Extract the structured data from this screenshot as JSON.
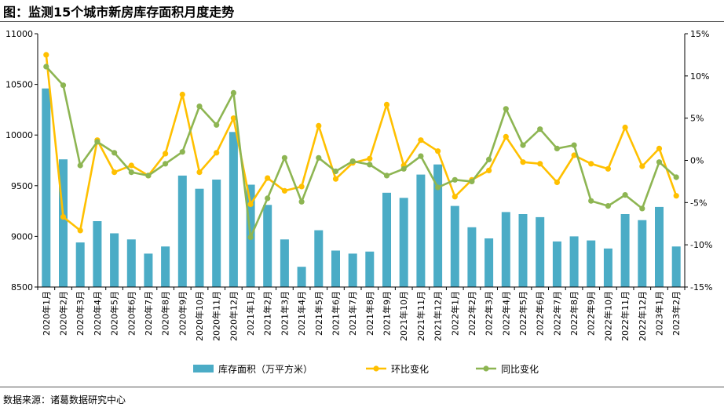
{
  "header": {
    "title": "图：监测15个城市新房库存面积月度走势"
  },
  "footer": {
    "source": "数据来源：诸葛数据研究中心"
  },
  "colors": {
    "bar": "#4bacc6",
    "mom": "#ffc000",
    "yoy": "#8db552",
    "axis": "#000000"
  },
  "chart_data": {
    "type": "bar",
    "categories": [
      "2020年1月",
      "2020年2月",
      "2020年3月",
      "2020年4月",
      "2020年5月",
      "2020年6月",
      "2020年7月",
      "2020年8月",
      "2020年9月",
      "2020年10月",
      "2020年11月",
      "2020年12月",
      "2021年1月",
      "2021年2月",
      "2021年3月",
      "2021年4月",
      "2021年5月",
      "2021年6月",
      "2021年7月",
      "2021年8月",
      "2021年9月",
      "2021年10月",
      "2021年11月",
      "2021年12月",
      "2022年1月",
      "2022年2月",
      "2022年3月",
      "2022年4月",
      "2022年5月",
      "2022年6月",
      "2022年7月",
      "2022年8月",
      "2022年9月",
      "2022年10月",
      "2022年11月",
      "2022年12月",
      "2023年1月",
      "2023年2月"
    ],
    "series": [
      {
        "name": "库存面积（万平方米）",
        "type": "bar",
        "axis": "left",
        "values": [
          10460,
          9760,
          8940,
          9150,
          9030,
          8970,
          8830,
          8900,
          9600,
          9470,
          9560,
          10030,
          9510,
          9310,
          8970,
          8700,
          9060,
          8860,
          8830,
          8850,
          9430,
          9380,
          9610,
          9710,
          9300,
          9090,
          8980,
          9240,
          9220,
          9190,
          8950,
          9000,
          8960,
          8880,
          9220,
          9160,
          9290,
          8900
        ]
      },
      {
        "name": "环比变化",
        "type": "line",
        "axis": "right",
        "values": [
          12.5,
          -6.7,
          -8.3,
          2.4,
          -1.4,
          -0.6,
          -1.8,
          0.8,
          7.8,
          -1.4,
          0.9,
          5.0,
          -5.2,
          -2.1,
          -3.6,
          -3.1,
          4.1,
          -2.2,
          -0.3,
          0.2,
          6.6,
          -0.6,
          2.4,
          1.1,
          -4.3,
          -2.3,
          -1.2,
          2.8,
          -0.2,
          -0.4,
          -2.6,
          0.6,
          -0.4,
          -1.0,
          3.9,
          -0.7,
          1.4,
          -4.2
        ]
      },
      {
        "name": "同比变化",
        "type": "line",
        "axis": "right",
        "values": [
          11.1,
          8.9,
          -0.6,
          2.2,
          0.9,
          -1.4,
          -1.8,
          -0.4,
          1.0,
          6.4,
          4.2,
          8.0,
          -9.1,
          -4.5,
          0.3,
          -4.9,
          0.3,
          -1.3,
          -0.1,
          -0.5,
          -1.8,
          -1.0,
          0.5,
          -3.2,
          -2.3,
          -2.5,
          0.1,
          6.1,
          1.8,
          3.7,
          1.4,
          1.8,
          -4.8,
          -5.4,
          -4.1,
          -5.7,
          -0.2,
          -2.0
        ]
      }
    ],
    "y_left": {
      "ylim": [
        8500,
        11000
      ],
      "ticks": [
        "8500",
        "9000",
        "9500",
        "10000",
        "10500",
        "11000"
      ]
    },
    "y_right": {
      "ylim": [
        -15,
        15
      ],
      "ticks": [
        "-15%",
        "-10%",
        "-5%",
        "0%",
        "5%",
        "10%",
        "15%"
      ]
    },
    "legend_position": "bottom",
    "grid": false
  }
}
